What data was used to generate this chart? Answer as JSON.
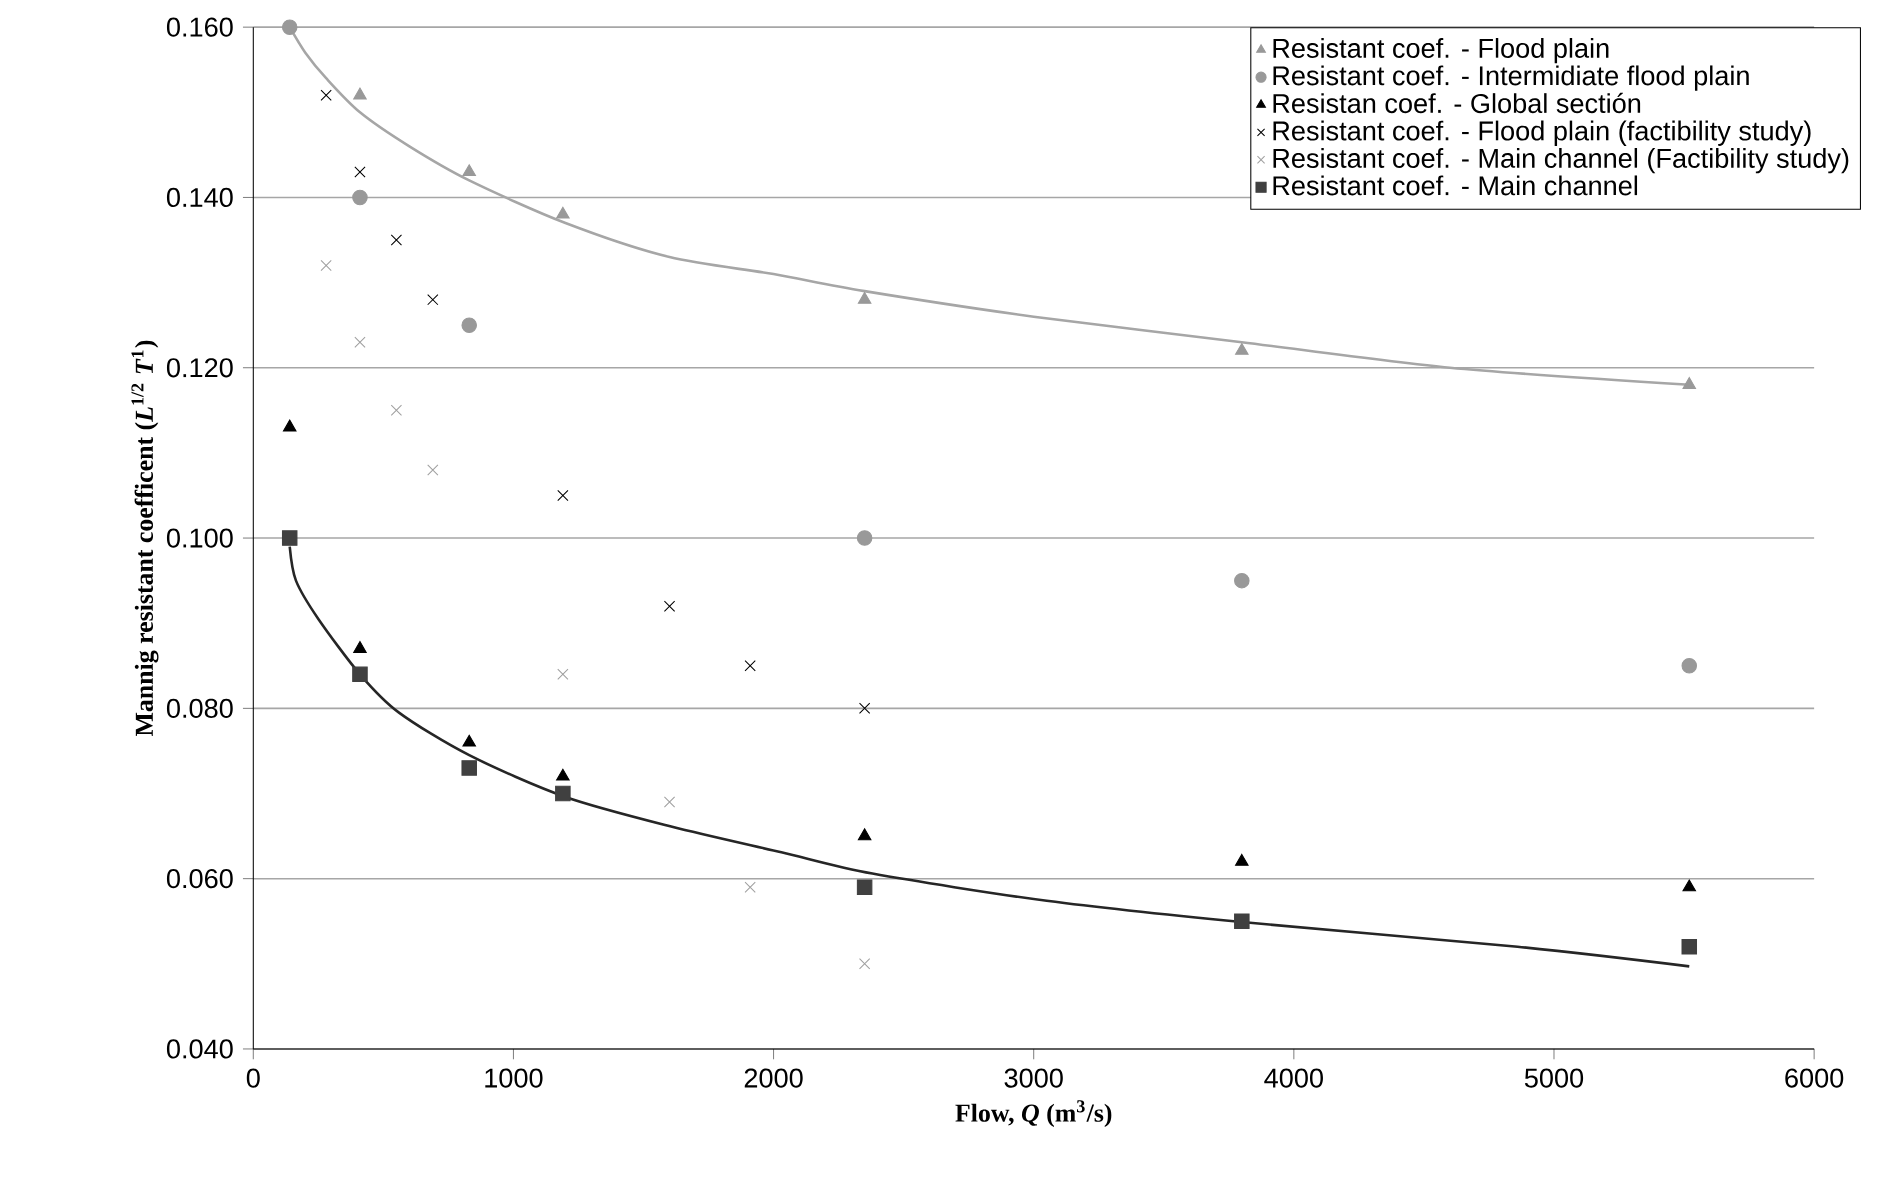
{
  "chart_data": {
    "type": "scatter",
    "xlabel": "Flow, *Q* (m$^{3}$/s)",
    "ylabel": "Mannig resistant coefficent    (*L*$^{1/2}$ *T*$^{1}$)",
    "xlim": [
      0,
      6000
    ],
    "ylim": [
      0.04,
      0.16
    ],
    "xticks": [
      0,
      1000,
      2000,
      3000,
      4000,
      5000,
      6000
    ],
    "yticks": [
      {
        "value": 0.04,
        "label": "0.040"
      },
      {
        "value": 0.06,
        "label": "0.060"
      },
      {
        "value": 0.08,
        "label": "0.080"
      },
      {
        "value": 0.1,
        "label": "0.100"
      },
      {
        "value": 0.12,
        "label": "0.120"
      },
      {
        "value": 0.14,
        "label": "0.140"
      },
      {
        "value": 0.16,
        "label": "0.160"
      }
    ],
    "grid": "y",
    "legend": "top right",
    "series": [
      {
        "name": "Resistant coef. - Flood plain",
        "color": "#999999",
        "marker": "triangle",
        "x": [
          410,
          830,
          1190,
          2350,
          3800,
          5520
        ],
        "values": [
          0.152,
          0.143,
          0.138,
          0.128,
          0.122,
          0.118
        ]
      },
      {
        "name": "Resistant coef. - Intermidiate flood plain",
        "color": "#999999",
        "marker": "circle",
        "x": [
          140,
          410,
          830,
          2350,
          3800,
          5520
        ],
        "values": [
          0.16,
          0.14,
          0.125,
          0.1,
          0.095,
          0.085
        ]
      },
      {
        "name": "Resistan coef. - Global sectión",
        "color": "#000000",
        "marker": "triangle",
        "x": [
          140,
          410,
          830,
          1190,
          2350,
          3800,
          5520
        ],
        "values": [
          0.113,
          0.087,
          0.076,
          0.072,
          0.065,
          0.062,
          0.059
        ]
      },
      {
        "name": "Resistant coef. - Flood plain (factibility study)",
        "color": "#000000",
        "marker": "cross",
        "x": [
          280,
          410,
          550,
          690,
          1190,
          1600,
          1910,
          2350
        ],
        "values": [
          0.152,
          0.143,
          0.135,
          0.128,
          0.105,
          0.092,
          0.085,
          0.08
        ]
      },
      {
        "name": "Resistant coef. - Main channel (Factibility study)",
        "color": "#a0a0a0",
        "marker": "cross",
        "x": [
          280,
          410,
          550,
          690,
          1190,
          1600,
          1910,
          2350
        ],
        "values": [
          0.132,
          0.123,
          0.115,
          0.108,
          0.084,
          0.069,
          0.059,
          0.05
        ]
      },
      {
        "name": "Resistant coef. - Main channel",
        "color": "#404040",
        "marker": "square",
        "x": [
          140,
          410,
          830,
          1190,
          2350,
          3800,
          5520
        ],
        "values": [
          0.1,
          0.084,
          0.073,
          0.07,
          0.059,
          0.055,
          0.052
        ]
      },
      {
        "type": "line",
        "color": "#a6a6a6",
        "marker": "none",
        "x": [
          140,
          200,
          280,
          410,
          600,
          830,
          1200,
          1600,
          2000,
          2350,
          3000,
          3800,
          4600,
          5520
        ],
        "values": [
          0.16,
          0.157,
          0.154,
          0.15,
          0.146,
          0.142,
          0.137,
          0.133,
          0.131,
          0.129,
          0.126,
          0.123,
          0.12,
          0.118
        ]
      },
      {
        "type": "line",
        "color": "#262626",
        "marker": "none",
        "x": [
          140,
          164,
          250,
          410,
          560,
          830,
          1200,
          1610,
          2030,
          2380,
          3050,
          3800,
          4860,
          5520
        ],
        "values": [
          0.099,
          0.095,
          0.0905,
          0.084,
          0.0795,
          0.0745,
          0.0696,
          0.0661,
          0.0631,
          0.0606,
          0.0574,
          0.0549,
          0.052,
          0.0497
        ]
      }
    ]
  }
}
